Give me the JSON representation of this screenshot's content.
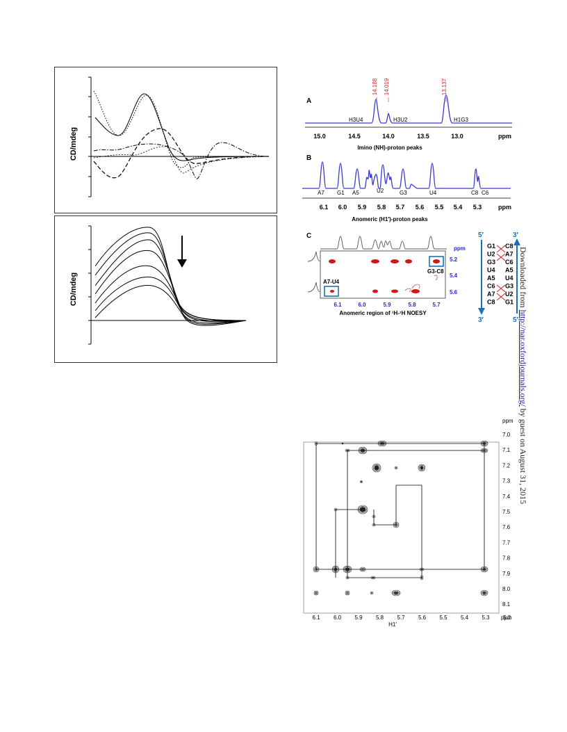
{
  "cd_panels": [
    {
      "ylabel": "CD/mdeg"
    },
    {
      "ylabel": "CD/mdeg"
    }
  ],
  "nmr": {
    "panel_a": {
      "letter": "A",
      "peak_ppm": [
        "14.188",
        "14.019",
        "13.137"
      ],
      "peak_names": [
        "H3U4",
        "H3U2",
        "H1G3"
      ],
      "ticks": [
        "15.0",
        "14.5",
        "14.0",
        "13.5",
        "13.0"
      ],
      "unit": "ppm",
      "caption": "Imino (NH)-proton peaks"
    },
    "panel_b": {
      "letter": "B",
      "peak_names": [
        "A7",
        "G1",
        "A5",
        "U2",
        "G3",
        "U4",
        "C8",
        "C6"
      ],
      "ticks": [
        "6.1",
        "6.0",
        "5.9",
        "5.8",
        "5.7",
        "5.6",
        "5.5",
        "5.4",
        "5.3"
      ],
      "unit": "ppm",
      "caption": "Anomeric (H1′)-proton peaks"
    },
    "panel_c": {
      "letter": "C",
      "unit": "ppm",
      "yticks": [
        "5.2",
        "5.4",
        "5.6"
      ],
      "xticks": [
        "6.1",
        "6.0",
        "5.9",
        "5.8",
        "5.7"
      ],
      "box_labels": [
        "G3-C8",
        "A7-U4"
      ],
      "caption": "Anomeric region of ¹H-¹H NOESY",
      "strand_top_left": "5′",
      "strand_top_right": "3′",
      "strand_bottom_left": "3′",
      "strand_bottom_right": "5′",
      "left_strand": [
        "G1",
        "U2",
        "G3",
        "U4",
        "A5",
        "C6",
        "A7",
        "C8"
      ],
      "right_strand": [
        "C8",
        "A7",
        "C6",
        "A5",
        "U4",
        "G3",
        "U2",
        "G1"
      ]
    }
  },
  "noesy": {
    "yunit": "ppm",
    "yticks": [
      "7.0",
      "7.1",
      "7.2",
      "7.3",
      "7.4",
      "7.5",
      "7.6",
      "7.7",
      "7.8",
      "7.9",
      "8.0",
      "8.1"
    ],
    "xticks": [
      "6.1",
      "6.0",
      "5.9",
      "5.8",
      "5.7",
      "5.6",
      "5.5",
      "5.4",
      "5.3",
      "5.2"
    ],
    "xunit": "ppm",
    "xlabel": "H1′"
  },
  "side_note": {
    "prefix": "Downloaded from ",
    "link": "http://nar.oxfordjournals.org/",
    "suffix": " by guest on August 31, 2015"
  },
  "colors": {
    "spectrum": "#3a3ad0",
    "peak_label": "#e02020",
    "accent_blue": "#1b6fb8",
    "contour_red": "#d01818"
  }
}
